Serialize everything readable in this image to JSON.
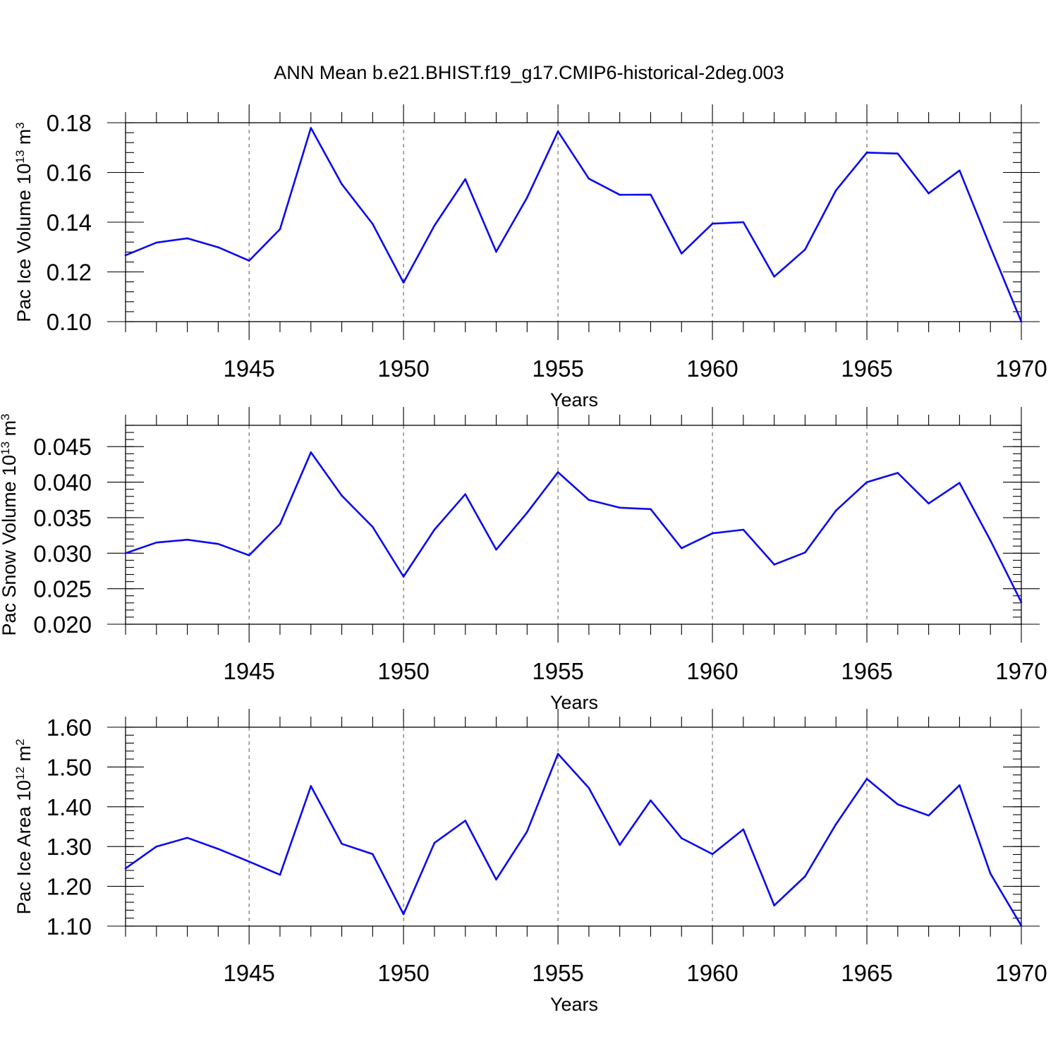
{
  "title": "ANN Mean b.e21.BHIST.f19_g17.CMIP6-historical-2deg.003",
  "colors": {
    "series": "#0a0af0",
    "frame": "#000000",
    "reference_line": "#555555"
  },
  "chart_data": [
    {
      "type": "line",
      "ylabel": "Pac Ice Volume 10",
      "ylabel_exp": "13",
      "ylabel_unit": " m",
      "ylabel_unit_exp": "3",
      "xlabel": "Years",
      "xlim": [
        1941,
        1970
      ],
      "ylim": [
        0.1,
        0.18
      ],
      "yticks": [
        0.1,
        0.12,
        0.14,
        0.16,
        0.18
      ],
      "ytick_labels": [
        "0.10",
        "0.12",
        "0.14",
        "0.16",
        "0.18"
      ],
      "y_minor_step": 0.004,
      "xticks": [
        1945,
        1950,
        1955,
        1960,
        1965,
        1970
      ],
      "xtick_labels": [
        "1945",
        "1950",
        "1955",
        "1960",
        "1965",
        "1970"
      ],
      "x": [
        1941,
        1942,
        1943,
        1944,
        1945,
        1946,
        1947,
        1948,
        1949,
        1950,
        1951,
        1952,
        1953,
        1954,
        1955,
        1956,
        1957,
        1958,
        1959,
        1960,
        1961,
        1962,
        1963,
        1964,
        1965,
        1966,
        1967,
        1968,
        1969,
        1970
      ],
      "y": [
        0.1267,
        0.1318,
        0.1335,
        0.1299,
        0.1245,
        0.1372,
        0.1779,
        0.1553,
        0.1393,
        0.1157,
        0.1386,
        0.1573,
        0.1281,
        0.1499,
        0.1765,
        0.1575,
        0.151,
        0.1511,
        0.1274,
        0.1394,
        0.14,
        0.1181,
        0.129,
        0.1528,
        0.168,
        0.1676,
        0.1516,
        0.1608,
        0.13,
        0.1
      ]
    },
    {
      "type": "line",
      "ylabel": "Pac Snow Volume 10",
      "ylabel_exp": "13",
      "ylabel_unit": " m",
      "ylabel_unit_exp": "3",
      "xlabel": "Years",
      "xlim": [
        1941,
        1970
      ],
      "ylim": [
        0.02,
        0.048
      ],
      "yticks": [
        0.02,
        0.025,
        0.03,
        0.035,
        0.04,
        0.045
      ],
      "ytick_labels": [
        "0.020",
        "0.025",
        "0.030",
        "0.035",
        "0.040",
        "0.045"
      ],
      "y_minor_step": 0.001,
      "xticks": [
        1945,
        1950,
        1955,
        1960,
        1965,
        1970
      ],
      "xtick_labels": [
        "1945",
        "1950",
        "1955",
        "1960",
        "1965",
        "1970"
      ],
      "x": [
        1941,
        1942,
        1943,
        1944,
        1945,
        1946,
        1947,
        1948,
        1949,
        1950,
        1951,
        1952,
        1953,
        1954,
        1955,
        1956,
        1957,
        1958,
        1959,
        1960,
        1961,
        1962,
        1963,
        1964,
        1965,
        1966,
        1967,
        1968,
        1969,
        1970
      ],
      "y": [
        0.03,
        0.0315,
        0.0319,
        0.0313,
        0.0297,
        0.0341,
        0.0442,
        0.0381,
        0.0337,
        0.0267,
        0.0333,
        0.0383,
        0.0305,
        0.0357,
        0.0414,
        0.0375,
        0.0364,
        0.0362,
        0.0307,
        0.0328,
        0.0333,
        0.0284,
        0.0301,
        0.036,
        0.04,
        0.0413,
        0.037,
        0.0399,
        0.0318,
        0.0231
      ]
    },
    {
      "type": "line",
      "ylabel": "Pac Ice Area 10",
      "ylabel_exp": "12",
      "ylabel_unit": " m",
      "ylabel_unit_exp": "2",
      "xlabel": "Years",
      "xlim": [
        1941,
        1970
      ],
      "ylim": [
        1.1,
        1.6
      ],
      "yticks": [
        1.1,
        1.2,
        1.3,
        1.4,
        1.5,
        1.6
      ],
      "ytick_labels": [
        "1.10",
        "1.20",
        "1.30",
        "1.40",
        "1.50",
        "1.60"
      ],
      "y_minor_step": 0.02,
      "xticks": [
        1945,
        1950,
        1955,
        1960,
        1965,
        1970
      ],
      "xtick_labels": [
        "1945",
        "1950",
        "1955",
        "1960",
        "1965",
        "1970"
      ],
      "x": [
        1941,
        1942,
        1943,
        1944,
        1945,
        1946,
        1947,
        1948,
        1949,
        1950,
        1951,
        1952,
        1953,
        1954,
        1955,
        1956,
        1957,
        1958,
        1959,
        1960,
        1961,
        1962,
        1963,
        1964,
        1965,
        1966,
        1967,
        1968,
        1969,
        1970
      ],
      "y": [
        1.245,
        1.3,
        1.322,
        1.294,
        1.262,
        1.229,
        1.452,
        1.307,
        1.281,
        1.13,
        1.309,
        1.365,
        1.217,
        1.338,
        1.533,
        1.447,
        1.304,
        1.416,
        1.321,
        1.281,
        1.343,
        1.152,
        1.225,
        1.356,
        1.47,
        1.406,
        1.378,
        1.454,
        1.232,
        1.101
      ]
    }
  ]
}
